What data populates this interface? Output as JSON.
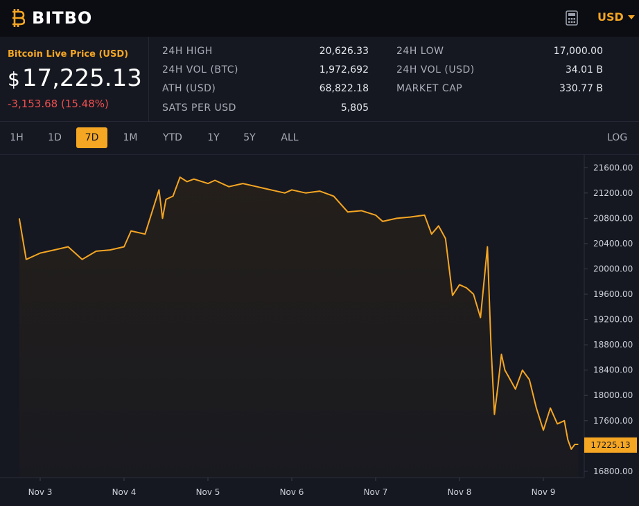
{
  "brand": {
    "name": "BITBO"
  },
  "topbar": {
    "currency": "USD",
    "calculator_icon": "calculator-icon"
  },
  "price": {
    "label": "Bitcoin Live Price (USD)",
    "currency_symbol": "$",
    "value": "17,225.13",
    "change": "-3,153.68 (15.48%)",
    "change_color": "#ef4f4f"
  },
  "stats": {
    "high_24h_label": "24H HIGH",
    "high_24h": "20,626.33",
    "vol_btc_label": "24H VOL (BTC)",
    "vol_btc": "1,972,692",
    "ath_label": "ATH (USD)",
    "ath": "68,822.18",
    "sats_label": "SATS PER USD",
    "sats": "5,805",
    "low_24h_label": "24H LOW",
    "low_24h": "17,000.00",
    "vol_usd_label": "24H VOL (USD)",
    "vol_usd": "34.01 B",
    "mcap_label": "MARKET CAP",
    "mcap": "330.77 B"
  },
  "timeframes": {
    "items": [
      "1H",
      "1D",
      "7D",
      "1M",
      "YTD",
      "1Y",
      "5Y",
      "ALL"
    ],
    "active": "7D",
    "log_label": "LOG"
  },
  "colors": {
    "accent": "#f5a623",
    "background": "#161821",
    "topbar": "#0b0d12",
    "negative": "#ef4f4f"
  },
  "chart_data": {
    "type": "area",
    "x_labels": [
      "Nov 3",
      "Nov 4",
      "Nov 5",
      "Nov 6",
      "Nov 7",
      "Nov 8",
      "Nov 9"
    ],
    "y_ticks": [
      "21600.00",
      "21200.00",
      "20800.00",
      "20400.00",
      "20000.00",
      "19600.00",
      "19200.00",
      "18800.00",
      "18400.00",
      "18000.00",
      "17600.00",
      "16800.00"
    ],
    "ylim": [
      16700,
      21800
    ],
    "current_price_label": "17225.13",
    "x": [
      "Nov 2 18:00",
      "Nov 2 20:00",
      "Nov 3 00:00",
      "Nov 3 04:00",
      "Nov 3 08:00",
      "Nov 3 12:00",
      "Nov 3 16:00",
      "Nov 3 20:00",
      "Nov 4 00:00",
      "Nov 4 02:00",
      "Nov 4 06:00",
      "Nov 4 10:00",
      "Nov 4 11:00",
      "Nov 4 12:00",
      "Nov 4 14:00",
      "Nov 4 16:00",
      "Nov 4 18:00",
      "Nov 4 20:00",
      "Nov 5 00:00",
      "Nov 5 02:00",
      "Nov 5 06:00",
      "Nov 5 10:00",
      "Nov 5 14:00",
      "Nov 5 18:00",
      "Nov 5 22:00",
      "Nov 6 00:00",
      "Nov 6 04:00",
      "Nov 6 08:00",
      "Nov 6 12:00",
      "Nov 6 16:00",
      "Nov 6 20:00",
      "Nov 7 00:00",
      "Nov 7 02:00",
      "Nov 7 06:00",
      "Nov 7 10:00",
      "Nov 7 14:00",
      "Nov 7 16:00",
      "Nov 7 18:00",
      "Nov 7 20:00",
      "Nov 7 22:00",
      "Nov 8 00:00",
      "Nov 8 02:00",
      "Nov 8 04:00",
      "Nov 8 06:00",
      "Nov 8 08:00",
      "Nov 8 09:00",
      "Nov 8 10:00",
      "Nov 8 11:00",
      "Nov 8 12:00",
      "Nov 8 13:00",
      "Nov 8 14:00",
      "Nov 8 16:00",
      "Nov 8 18:00",
      "Nov 8 20:00",
      "Nov 8 22:00",
      "Nov 9 00:00",
      "Nov 9 02:00",
      "Nov 9 04:00",
      "Nov 9 06:00",
      "Nov 9 07:00",
      "Nov 9 08:00",
      "Nov 9 09:00",
      "Nov 9 10:00"
    ],
    "series": [
      {
        "values": [
          20800,
          20150,
          20250,
          20300,
          20350,
          20150,
          20280,
          20300,
          20350,
          20600,
          20550,
          21250,
          20800,
          21100,
          21150,
          21450,
          21380,
          21420,
          21350,
          21400,
          21300,
          21350,
          21300,
          21250,
          21200,
          21250,
          21200,
          21230,
          21150,
          20900,
          20920,
          20850,
          20750,
          20800,
          20820,
          20850,
          20550,
          20680,
          20480,
          19580,
          19750,
          19700,
          19600,
          19230,
          20350,
          18800,
          17700,
          18150,
          18650,
          18400,
          18300,
          18100,
          18400,
          18250,
          17800,
          17450,
          17800,
          17550,
          17600,
          17300,
          17150,
          17225,
          17225
        ]
      }
    ]
  }
}
